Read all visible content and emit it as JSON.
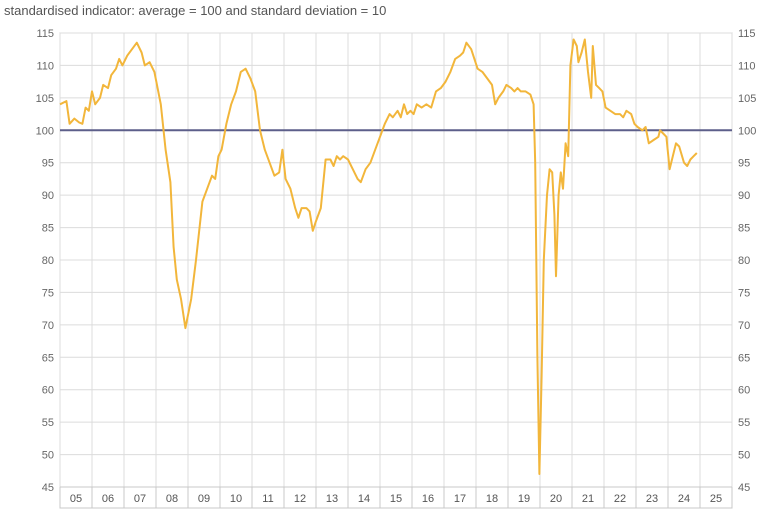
{
  "chart_data": {
    "type": "line",
    "title": "standardised indicator: average = 100 and standard deviation = 10",
    "xlabel": "",
    "ylabel": "",
    "ylim": [
      45,
      115
    ],
    "yticks": [
      45,
      50,
      55,
      60,
      65,
      70,
      75,
      80,
      85,
      90,
      95,
      100,
      105,
      110,
      115
    ],
    "x_categories": [
      "05",
      "06",
      "07",
      "08",
      "09",
      "10",
      "11",
      "12",
      "13",
      "14",
      "15",
      "16",
      "17",
      "18",
      "19",
      "20",
      "21",
      "22",
      "23",
      "24",
      "25"
    ],
    "xlim": [
      2005.0,
      2025.0
    ],
    "grid": true,
    "legend": "none",
    "reference_line": {
      "value": 100,
      "color": "#5d5f8a"
    },
    "series": [
      {
        "color": "#f2b63b",
        "points": [
          [
            2005.0,
            104
          ],
          [
            2005.2,
            104.5
          ],
          [
            2005.3,
            101
          ],
          [
            2005.45,
            101.8
          ],
          [
            2005.6,
            101.2
          ],
          [
            2005.7,
            101
          ],
          [
            2005.8,
            103.5
          ],
          [
            2005.9,
            103
          ],
          [
            2006.0,
            106
          ],
          [
            2006.1,
            104
          ],
          [
            2006.25,
            105
          ],
          [
            2006.35,
            107
          ],
          [
            2006.5,
            106.5
          ],
          [
            2006.6,
            108.5
          ],
          [
            2006.75,
            109.5
          ],
          [
            2006.85,
            111
          ],
          [
            2006.95,
            110
          ],
          [
            2007.1,
            111.5
          ],
          [
            2007.25,
            112.5
          ],
          [
            2007.4,
            113.5
          ],
          [
            2007.55,
            112
          ],
          [
            2007.65,
            110
          ],
          [
            2007.8,
            110.5
          ],
          [
            2007.95,
            109
          ],
          [
            2008.15,
            104
          ],
          [
            2008.3,
            97
          ],
          [
            2008.45,
            92
          ],
          [
            2008.55,
            82
          ],
          [
            2008.65,
            77
          ],
          [
            2008.78,
            74
          ],
          [
            2008.92,
            69.5
          ],
          [
            2009.1,
            74
          ],
          [
            2009.25,
            80
          ],
          [
            2009.45,
            89
          ],
          [
            2009.6,
            91
          ],
          [
            2009.75,
            93
          ],
          [
            2009.85,
            92.5
          ],
          [
            2009.95,
            96
          ],
          [
            2010.05,
            97
          ],
          [
            2010.2,
            101
          ],
          [
            2010.35,
            104
          ],
          [
            2010.5,
            106
          ],
          [
            2010.65,
            109
          ],
          [
            2010.8,
            109.5
          ],
          [
            2010.95,
            108
          ],
          [
            2011.1,
            106
          ],
          [
            2011.25,
            100
          ],
          [
            2011.4,
            97
          ],
          [
            2011.55,
            95
          ],
          [
            2011.7,
            93
          ],
          [
            2011.85,
            93.5
          ],
          [
            2011.95,
            97
          ],
          [
            2012.05,
            92.5
          ],
          [
            2012.2,
            91
          ],
          [
            2012.35,
            88
          ],
          [
            2012.45,
            86.5
          ],
          [
            2012.55,
            88
          ],
          [
            2012.7,
            88
          ],
          [
            2012.8,
            87.5
          ],
          [
            2012.9,
            84.5
          ],
          [
            2013.0,
            86
          ],
          [
            2013.15,
            88
          ],
          [
            2013.3,
            95.5
          ],
          [
            2013.45,
            95.5
          ],
          [
            2013.55,
            94.5
          ],
          [
            2013.65,
            96
          ],
          [
            2013.75,
            95.5
          ],
          [
            2013.85,
            96
          ],
          [
            2014.0,
            95.5
          ],
          [
            2014.15,
            94
          ],
          [
            2014.3,
            92.5
          ],
          [
            2014.4,
            92
          ],
          [
            2014.55,
            94
          ],
          [
            2014.7,
            95
          ],
          [
            2014.85,
            97
          ],
          [
            2015.0,
            99
          ],
          [
            2015.15,
            101
          ],
          [
            2015.3,
            102.5
          ],
          [
            2015.4,
            102
          ],
          [
            2015.55,
            103
          ],
          [
            2015.65,
            102
          ],
          [
            2015.75,
            104
          ],
          [
            2015.85,
            102.5
          ],
          [
            2015.95,
            103
          ],
          [
            2016.05,
            102.5
          ],
          [
            2016.15,
            104
          ],
          [
            2016.3,
            103.5
          ],
          [
            2016.45,
            104
          ],
          [
            2016.6,
            103.5
          ],
          [
            2016.75,
            106
          ],
          [
            2016.9,
            106.5
          ],
          [
            2017.05,
            107.5
          ],
          [
            2017.2,
            109
          ],
          [
            2017.35,
            111
          ],
          [
            2017.5,
            111.5
          ],
          [
            2017.6,
            112
          ],
          [
            2017.7,
            113.5
          ],
          [
            2017.85,
            112.5
          ],
          [
            2017.95,
            111
          ],
          [
            2018.05,
            109.5
          ],
          [
            2018.2,
            109
          ],
          [
            2018.35,
            108
          ],
          [
            2018.5,
            107
          ],
          [
            2018.6,
            104
          ],
          [
            2018.7,
            105
          ],
          [
            2018.85,
            106
          ],
          [
            2018.95,
            107
          ],
          [
            2019.1,
            106.5
          ],
          [
            2019.2,
            106
          ],
          [
            2019.3,
            106.5
          ],
          [
            2019.4,
            106
          ],
          [
            2019.55,
            106
          ],
          [
            2019.7,
            105.5
          ],
          [
            2019.8,
            104
          ],
          [
            2019.85,
            95
          ],
          [
            2019.92,
            65
          ],
          [
            2019.98,
            47
          ],
          [
            2020.05,
            62
          ],
          [
            2020.12,
            80
          ],
          [
            2020.22,
            90
          ],
          [
            2020.3,
            94
          ],
          [
            2020.38,
            93.5
          ],
          [
            2020.45,
            87
          ],
          [
            2020.5,
            77.5
          ],
          [
            2020.58,
            90
          ],
          [
            2020.65,
            93.5
          ],
          [
            2020.72,
            91
          ],
          [
            2020.8,
            98
          ],
          [
            2020.88,
            96
          ],
          [
            2020.95,
            110
          ],
          [
            2021.05,
            114
          ],
          [
            2021.15,
            113
          ],
          [
            2021.2,
            110.5
          ],
          [
            2021.3,
            112
          ],
          [
            2021.4,
            114
          ],
          [
            2021.5,
            109
          ],
          [
            2021.6,
            105
          ],
          [
            2021.65,
            113
          ],
          [
            2021.75,
            107
          ],
          [
            2021.85,
            106.5
          ],
          [
            2021.95,
            106
          ],
          [
            2022.05,
            103.5
          ],
          [
            2022.2,
            103
          ],
          [
            2022.35,
            102.5
          ],
          [
            2022.5,
            102.5
          ],
          [
            2022.6,
            102
          ],
          [
            2022.7,
            103
          ],
          [
            2022.85,
            102.5
          ],
          [
            2022.95,
            101
          ],
          [
            2023.05,
            100.5
          ],
          [
            2023.2,
            100
          ],
          [
            2023.3,
            100.5
          ],
          [
            2023.4,
            98
          ],
          [
            2023.55,
            98.5
          ],
          [
            2023.7,
            99
          ],
          [
            2023.75,
            100
          ],
          [
            2023.85,
            99.5
          ],
          [
            2023.95,
            99
          ],
          [
            2024.05,
            94
          ],
          [
            2024.15,
            96
          ],
          [
            2024.25,
            98
          ],
          [
            2024.35,
            97.5
          ],
          [
            2024.5,
            95
          ],
          [
            2024.6,
            94.5
          ],
          [
            2024.7,
            95.5
          ],
          [
            2024.8,
            96
          ],
          [
            2024.9,
            96.5
          ]
        ]
      }
    ]
  }
}
